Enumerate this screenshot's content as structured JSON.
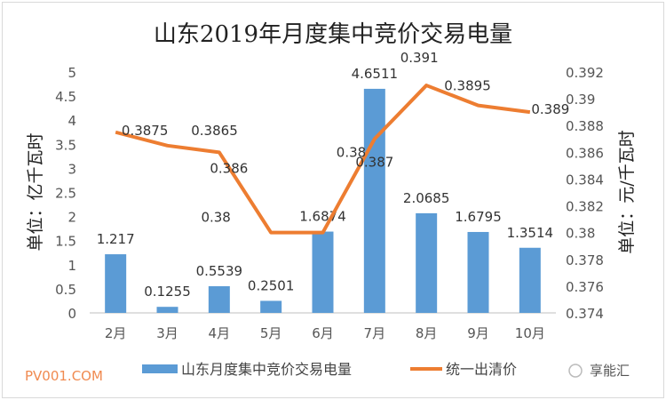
{
  "chart_data": {
    "type": "bar",
    "title": "山东2019年月度集中竞价交易电量",
    "categories": [
      "2月",
      "3月",
      "4月",
      "5月",
      "6月",
      "7月",
      "8月",
      "9月",
      "10月"
    ],
    "series": [
      {
        "name": "山东月度集中竞价交易电量",
        "type": "bar",
        "axis": "left",
        "color": "#5b9bd5",
        "values": [
          1.217,
          0.1255,
          0.5539,
          0.2501,
          1.6874,
          4.6511,
          2.0685,
          1.6795,
          1.3514
        ],
        "labels": [
          "1.217",
          "0.1255",
          "0.5539",
          "0.2501",
          "1.6874",
          "4.6511",
          "2.0685",
          "1.6795",
          "1.3514"
        ]
      },
      {
        "name": "统一出清价",
        "type": "line",
        "axis": "right",
        "color": "#ed7d31",
        "values": [
          0.3875,
          0.3865,
          0.386,
          0.38,
          0.38,
          0.387,
          0.391,
          0.3895,
          0.389
        ],
        "labels": [
          "0.3875",
          "0.3865",
          "0.386",
          "0.38",
          "0.38",
          "0.387",
          "0.391",
          "0.3895",
          "0.389"
        ]
      }
    ],
    "ylabel": "单位：亿千瓦时",
    "y2label": "单位：元/千瓦时",
    "ylim": [
      0,
      5
    ],
    "yticks": [
      "0",
      "0.5",
      "1",
      "1.5",
      "2",
      "2.5",
      "3",
      "3.5",
      "4",
      "4.5",
      "5"
    ],
    "y2lim": [
      0.374,
      0.392
    ],
    "y2ticks": [
      "0.374",
      "0.376",
      "0.378",
      "0.38",
      "0.382",
      "0.384",
      "0.386",
      "0.388",
      "0.39",
      "0.392"
    ],
    "legend_position": "bottom",
    "grid": false
  },
  "watermark": "PV001.COM",
  "brand": "享能汇"
}
